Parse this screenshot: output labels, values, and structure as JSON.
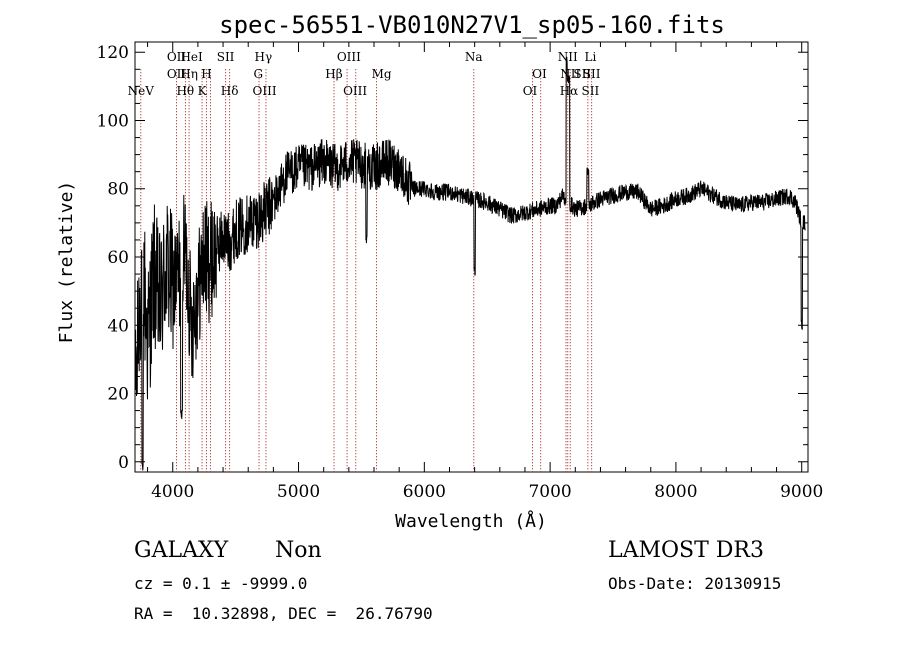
{
  "chart_data": {
    "type": "line",
    "title": "spec-56551-VB010N27V1_sp05-160.fits",
    "xlabel": "Wavelength (Å)",
    "ylabel": "Flux (relative)",
    "xlim": [
      3700,
      9050
    ],
    "ylim": [
      -3,
      123
    ],
    "xticks": [
      4000,
      5000,
      6000,
      7000,
      8000,
      9000
    ],
    "yticks": [
      0,
      20,
      40,
      60,
      80,
      100,
      120
    ],
    "grid": false,
    "line_color": "#000000",
    "marker_color": "#a01010",
    "spectrum_anchors": [
      [
        3700,
        15
      ],
      [
        3730,
        40
      ],
      [
        3760,
        60
      ],
      [
        3800,
        35
      ],
      [
        3850,
        55
      ],
      [
        3900,
        45
      ],
      [
        3950,
        58
      ],
      [
        4000,
        50
      ],
      [
        4050,
        55
      ],
      [
        4100,
        62
      ],
      [
        4150,
        40
      ],
      [
        4200,
        50
      ],
      [
        4250,
        60
      ],
      [
        4300,
        58
      ],
      [
        4350,
        63
      ],
      [
        4400,
        66
      ],
      [
        4450,
        64
      ],
      [
        4500,
        68
      ],
      [
        4600,
        70
      ],
      [
        4700,
        72
      ],
      [
        4800,
        76
      ],
      [
        4900,
        84
      ],
      [
        5000,
        86
      ],
      [
        5100,
        86
      ],
      [
        5200,
        88
      ],
      [
        5300,
        86
      ],
      [
        5400,
        88
      ],
      [
        5500,
        87
      ],
      [
        5600,
        86
      ],
      [
        5700,
        88
      ],
      [
        5800,
        86
      ],
      [
        5900,
        80
      ],
      [
        6000,
        80
      ],
      [
        6100,
        79
      ],
      [
        6200,
        79
      ],
      [
        6300,
        78
      ],
      [
        6400,
        77
      ],
      [
        6500,
        76
      ],
      [
        6600,
        74
      ],
      [
        6700,
        72
      ],
      [
        6800,
        73
      ],
      [
        6900,
        74
      ],
      [
        7000,
        75
      ],
      [
        7050,
        75
      ],
      [
        7100,
        78
      ],
      [
        7200,
        74
      ],
      [
        7300,
        75
      ],
      [
        7400,
        77
      ],
      [
        7500,
        78
      ],
      [
        7600,
        79
      ],
      [
        7700,
        79
      ],
      [
        7800,
        74
      ],
      [
        7900,
        75
      ],
      [
        8000,
        77
      ],
      [
        8100,
        78
      ],
      [
        8200,
        80
      ],
      [
        8300,
        78
      ],
      [
        8400,
        76
      ],
      [
        8500,
        75
      ],
      [
        8600,
        76
      ],
      [
        8700,
        76
      ],
      [
        8800,
        77
      ],
      [
        8900,
        78
      ],
      [
        8950,
        76
      ],
      [
        9000,
        70
      ]
    ],
    "spectrum_features": [
      {
        "x": 7135,
        "y": 118,
        "width": 8
      },
      {
        "x": 7145,
        "y": 112,
        "width": 10
      },
      {
        "x": 6400,
        "y": 56,
        "width": 6
      },
      {
        "x": 5540,
        "y": 65,
        "width": 5
      },
      {
        "x": 4070,
        "y": 14,
        "width": 8
      },
      {
        "x": 3760,
        "y": -2,
        "width": 6
      },
      {
        "x": 9000,
        "y": 40,
        "width": 6
      },
      {
        "x": 7300,
        "y": 85,
        "width": 8
      }
    ],
    "lines": [
      {
        "name": "NeV",
        "x": 3746,
        "row": 3
      },
      {
        "name": "OII",
        "x": 4030,
        "row": 0
      },
      {
        "name": "OII",
        "x": 4030,
        "row": 1
      },
      {
        "name": "Hθ",
        "x": 4100,
        "row": 2
      },
      {
        "name": "HeI",
        "x": 4150,
        "row": 0
      },
      {
        "name": "Hη",
        "x": 4130,
        "row": 1
      },
      {
        "name": "K",
        "x": 4233,
        "row": 2
      },
      {
        "name": "H",
        "x": 4268,
        "row": 1
      },
      {
        "name": "SII",
        "x": 4420,
        "row": 0
      },
      {
        "name": "Hδ",
        "x": 4452,
        "row": 2
      },
      {
        "name": "Hγ",
        "x": 4720,
        "row": 0
      },
      {
        "name": "G",
        "x": 4680,
        "row": 1
      },
      {
        "name": "OIII",
        "x": 4730,
        "row": 2
      },
      {
        "name": "OIII",
        "x": 5400,
        "row": 0
      },
      {
        "name": "Hβ",
        "x": 5282,
        "row": 1
      },
      {
        "name": "OIII",
        "x": 5450,
        "row": 2
      },
      {
        "name": "Mg",
        "x": 5660,
        "row": 1
      },
      {
        "name": "Na",
        "x": 6393,
        "row": 0
      },
      {
        "name": "OI",
        "x": 6915,
        "row": 1
      },
      {
        "name": "OI",
        "x": 6840,
        "row": 2
      },
      {
        "name": "NII",
        "x": 7140,
        "row": 0
      },
      {
        "name": "NII",
        "x": 7160,
        "row": 1
      },
      {
        "name": "Hα",
        "x": 7150,
        "row": 2
      },
      {
        "name": "Li",
        "x": 7320,
        "row": 0
      },
      {
        "name": "SII",
        "x": 7255,
        "row": 1
      },
      {
        "name": "SII",
        "x": 7320,
        "row": 2
      },
      {
        "name": "SII",
        "x": 7330,
        "row": 1
      }
    ],
    "marker_lines": [
      3746,
      4030,
      4101,
      4130,
      4233,
      4268,
      4300,
      4420,
      4452,
      4686,
      4741,
      5282,
      5386,
      5455,
      5620,
      6393,
      6860,
      6925,
      7126,
      7140,
      7160,
      7300,
      7330
    ]
  },
  "info": {
    "class": "GALAXY",
    "subclass": "Non",
    "survey": "LAMOST DR3",
    "cz": "cz = 0.1 ± -9999.0",
    "obs_date": "Obs-Date: 20130915",
    "radec": "RA =  10.32898, DEC =  26.76790"
  }
}
